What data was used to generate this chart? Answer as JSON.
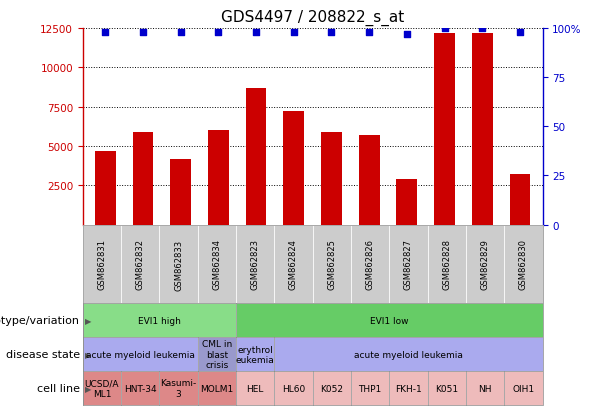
{
  "title": "GDS4497 / 208822_s_at",
  "samples": [
    "GSM862831",
    "GSM862832",
    "GSM862833",
    "GSM862834",
    "GSM862823",
    "GSM862824",
    "GSM862825",
    "GSM862826",
    "GSM862827",
    "GSM862828",
    "GSM862829",
    "GSM862830"
  ],
  "counts": [
    4700,
    5900,
    4200,
    6000,
    8700,
    7200,
    5900,
    5700,
    2900,
    12200,
    12200,
    3200
  ],
  "percentiles": [
    98,
    98,
    98,
    98,
    98,
    98,
    98,
    98,
    97,
    100,
    100,
    98
  ],
  "bar_color": "#cc0000",
  "dot_color": "#0000cc",
  "ylim_left": [
    0,
    12500
  ],
  "ylim_right": [
    0,
    100
  ],
  "yticks_left": [
    2500,
    5000,
    7500,
    10000,
    12500
  ],
  "yticks_right": [
    0,
    25,
    50,
    75,
    100
  ],
  "genotype_row": {
    "label": "genotype/variation",
    "groups": [
      {
        "text": "EVI1 high",
        "start": 0,
        "end": 4,
        "color": "#88dd88"
      },
      {
        "text": "EVI1 low",
        "start": 4,
        "end": 12,
        "color": "#66cc66"
      }
    ]
  },
  "disease_row": {
    "label": "disease state",
    "groups": [
      {
        "text": "acute myeloid leukemia",
        "start": 0,
        "end": 3,
        "color": "#aaaaee"
      },
      {
        "text": "CML in\nblast\ncrisis",
        "start": 3,
        "end": 4,
        "color": "#9999cc"
      },
      {
        "text": "erythrol\neukemia",
        "start": 4,
        "end": 5,
        "color": "#aaaaee"
      },
      {
        "text": "acute myeloid leukemia",
        "start": 5,
        "end": 12,
        "color": "#aaaaee"
      }
    ]
  },
  "cell_row": {
    "label": "cell line",
    "groups": [
      {
        "text": "UCSD/A\nML1",
        "start": 0,
        "end": 1,
        "color": "#dd8888"
      },
      {
        "text": "HNT-34",
        "start": 1,
        "end": 2,
        "color": "#dd8888"
      },
      {
        "text": "Kasumi-\n3",
        "start": 2,
        "end": 3,
        "color": "#dd8888"
      },
      {
        "text": "MOLM1",
        "start": 3,
        "end": 4,
        "color": "#dd8888"
      },
      {
        "text": "HEL",
        "start": 4,
        "end": 5,
        "color": "#eebbbb"
      },
      {
        "text": "HL60",
        "start": 5,
        "end": 6,
        "color": "#eebbbb"
      },
      {
        "text": "K052",
        "start": 6,
        "end": 7,
        "color": "#eebbbb"
      },
      {
        "text": "THP1",
        "start": 7,
        "end": 8,
        "color": "#eebbbb"
      },
      {
        "text": "FKH-1",
        "start": 8,
        "end": 9,
        "color": "#eebbbb"
      },
      {
        "text": "K051",
        "start": 9,
        "end": 10,
        "color": "#eebbbb"
      },
      {
        "text": "NH",
        "start": 10,
        "end": 11,
        "color": "#eebbbb"
      },
      {
        "text": "OIH1",
        "start": 11,
        "end": 12,
        "color": "#eebbbb"
      }
    ]
  },
  "left_axis_color": "#cc0000",
  "right_axis_color": "#0000cc",
  "grid_color": "#000000",
  "bg_color": "#ffffff",
  "title_fontsize": 11,
  "tick_fontsize": 7.5,
  "label_fontsize": 8,
  "row_label_fontsize": 8,
  "xticklabel_bg": "#cccccc"
}
